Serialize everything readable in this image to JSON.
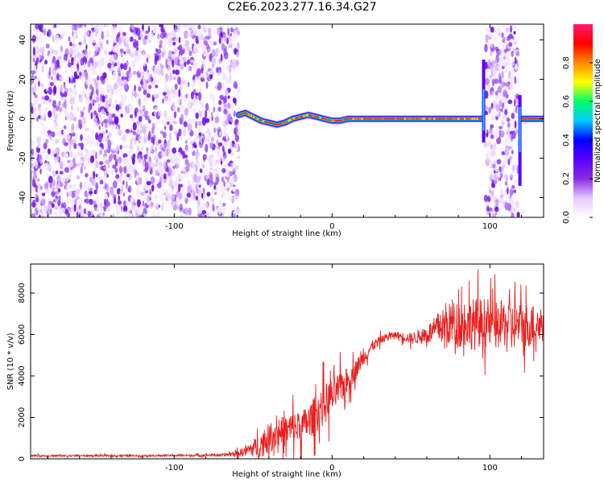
{
  "figure": {
    "title": "C2E6.2023.277.16.34.G27"
  },
  "chart_data": [
    {
      "type": "heatmap",
      "title": "C2E6.2023.277.16.34.G27",
      "xlabel": "Height of straight line (km)",
      "ylabel": "Frequency (Hz)",
      "xlim": [
        -191,
        134
      ],
      "ylim": [
        -50,
        48
      ],
      "x_ticks": [
        -100,
        0,
        100
      ],
      "y_ticks": [
        -40,
        -20,
        0,
        20,
        40
      ],
      "x_tick_labels": [
        "-100",
        "0",
        "100"
      ],
      "y_tick_labels": [
        "-40",
        "-20",
        "0",
        "20",
        "40"
      ],
      "grid": false,
      "colorbar": {
        "label": "Normalized spectral amplitude",
        "range": [
          0,
          1
        ],
        "ticks": [
          0.0,
          0.2,
          0.4,
          0.6,
          0.8
        ],
        "tick_labels": [
          "0.0",
          "0.2",
          "0.4",
          "0.6",
          "0.8"
        ],
        "colormap": [
          "#ffffff",
          "#e6c8ff",
          "#8a2be2",
          "#5a00ff",
          "#0000ff",
          "#00ccff",
          "#00ff66",
          "#ffff00",
          "#ff8800",
          "#ff0000",
          "#ff1a70"
        ]
      },
      "regions": [
        {
          "name": "noise",
          "x_range": [
            -191,
            -59
          ]
        },
        {
          "name": "signal",
          "x_range": [
            -59,
            97
          ]
        },
        {
          "name": "noise",
          "x_range": [
            97,
            118
          ]
        },
        {
          "name": "signal",
          "x_range": [
            118,
            134
          ]
        }
      ],
      "signal_trace": {
        "x": [
          -59,
          -55,
          -50,
          -45,
          -40,
          -35,
          -30,
          -25,
          -20,
          -15,
          -10,
          -5,
          0,
          5,
          10,
          20,
          40,
          60,
          80,
          95
        ],
        "freq": [
          2,
          3,
          1,
          -1,
          -2,
          -3,
          -2,
          0,
          1,
          2,
          1,
          0,
          -1,
          -1,
          0,
          0,
          0,
          0,
          0,
          0
        ]
      }
    },
    {
      "type": "line",
      "xlabel": "Height of straight line (km)",
      "ylabel": "SNR (10 * v/v)",
      "xlim": [
        -191,
        134
      ],
      "ylim": [
        0,
        9400
      ],
      "x_ticks": [
        -100,
        0,
        100
      ],
      "y_ticks": [
        0,
        2000,
        4000,
        6000,
        8000
      ],
      "x_tick_labels": [
        "-100",
        "0",
        "100"
      ],
      "y_tick_labels": [
        "0",
        "2000",
        "4000",
        "6000",
        "8000"
      ],
      "grid": false,
      "color": "#e8201e",
      "series": [
        {
          "x": [
            -191,
            -150,
            -100,
            -70,
            -60,
            -50,
            -45,
            -40,
            -35,
            -30,
            -25,
            -20,
            -15,
            -10,
            -5,
            0,
            5,
            10,
            15,
            20,
            25,
            30,
            35,
            40,
            45,
            50,
            55,
            60,
            65,
            70,
            75,
            80,
            85,
            90,
            95,
            100,
            105,
            110,
            115,
            120,
            125,
            130,
            134
          ],
          "values": [
            150,
            150,
            160,
            180,
            250,
            500,
            700,
            1000,
            1300,
            1300,
            1500,
            1500,
            1800,
            2200,
            2600,
            3000,
            3400,
            3800,
            4300,
            4900,
            5400,
            5700,
            5900,
            6000,
            5900,
            5800,
            5900,
            6000,
            6200,
            6400,
            6500,
            6500,
            6600,
            6500,
            6600,
            6500,
            6400,
            6600,
            6400,
            6500,
            6400,
            6500,
            6600
          ],
          "noise_amplitude": [
            60,
            60,
            60,
            80,
            200,
            600,
            900,
            1000,
            1100,
            1100,
            1200,
            1100,
            1200,
            1300,
            1400,
            1300,
            1100,
            900,
            700,
            500,
            400,
            300,
            250,
            200,
            300,
            400,
            500,
            700,
            900,
            1200,
            1500,
            1700,
            1700,
            1800,
            1700,
            1700,
            1600,
            1700,
            1600,
            1500,
            1500,
            1400,
            1400
          ]
        }
      ]
    }
  ]
}
